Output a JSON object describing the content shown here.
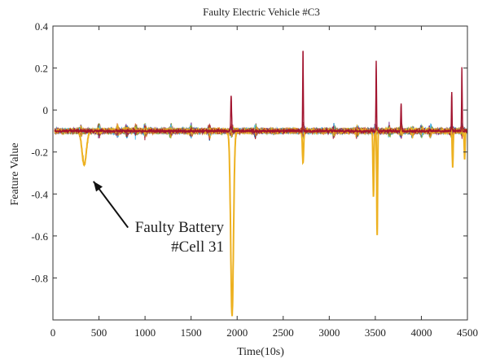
{
  "chart_data": {
    "type": "line",
    "title": "Faulty Electric Vehicle #C3",
    "xlabel": "Time(10s)",
    "ylabel": "Feature Value",
    "xlim": [
      0,
      4500
    ],
    "ylim": [
      -1.0,
      0.4
    ],
    "x_ticks": [
      0,
      500,
      1000,
      1500,
      2000,
      2500,
      3000,
      3500,
      4000,
      4500
    ],
    "x_tick_labels": [
      "0",
      "500",
      "1000",
      "1500",
      "2000",
      "2500",
      "3000",
      "3500",
      "4000",
      "4500"
    ],
    "y_ticks": [
      0.4,
      0.2,
      0,
      -0.2,
      -0.4,
      -0.6,
      -0.8
    ],
    "y_tick_labels": [
      "0.4",
      "0.2",
      "0",
      "-0.2",
      "-0.4",
      "-0.6",
      "-0.8"
    ],
    "baseline": -0.1,
    "grid": false,
    "series_colors": [
      "#0072BD",
      "#D95319",
      "#7E2F8E",
      "#77AC30",
      "#4DBEEE",
      "#A2142F",
      "#EDB120"
    ],
    "series": [
      {
        "color": "#EDB120",
        "highlighted": true,
        "events": [
          {
            "x": 340,
            "y": -0.26,
            "width": 70
          },
          {
            "x": 1945,
            "y": -0.98,
            "width": 45
          },
          {
            "x": 2715,
            "y": -0.25,
            "width": 20
          },
          {
            "x": 3480,
            "y": -0.41,
            "width": 16
          },
          {
            "x": 3520,
            "y": -0.59,
            "width": 14
          },
          {
            "x": 4340,
            "y": -0.27,
            "width": 14
          },
          {
            "x": 4470,
            "y": -0.23,
            "width": 14
          }
        ]
      },
      {
        "color": "#A2142F",
        "events": [
          {
            "x": 1935,
            "y": 0.07,
            "width": 14
          },
          {
            "x": 2715,
            "y": 0.3,
            "width": 10
          },
          {
            "x": 3510,
            "y": 0.24,
            "width": 10
          },
          {
            "x": 3780,
            "y": 0.03,
            "width": 12
          },
          {
            "x": 4330,
            "y": 0.09,
            "width": 10
          },
          {
            "x": 4440,
            "y": 0.2,
            "width": 10
          }
        ]
      }
    ],
    "annotation": {
      "lines": [
        "Faulty Battery",
        "#Cell 31"
      ],
      "arrow_from": [
        815,
        -0.56
      ],
      "arrow_to": [
        440,
        -0.34
      ]
    }
  }
}
